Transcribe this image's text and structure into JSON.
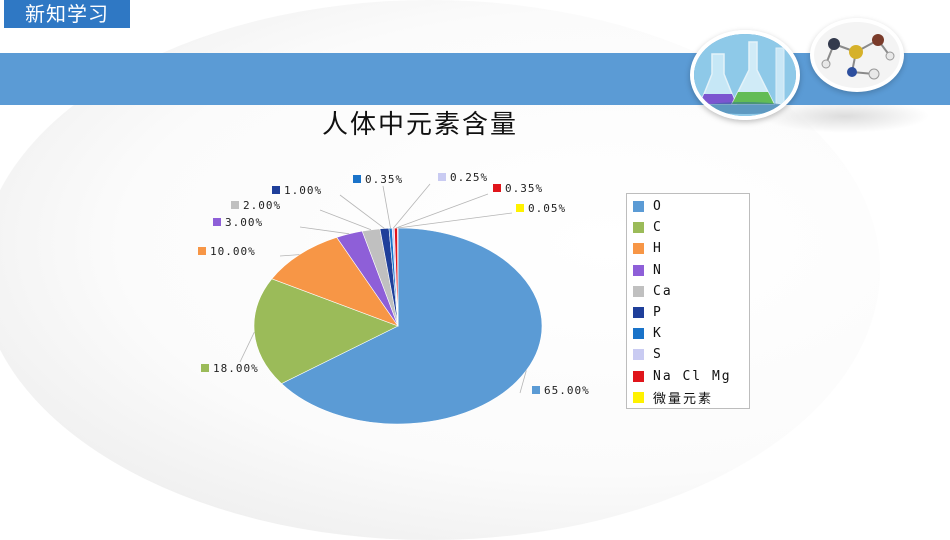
{
  "header": {
    "section_tag": "新知学习"
  },
  "chart_data": {
    "type": "pie",
    "title": "人体中元素含量",
    "labels": [
      "O",
      "C",
      "H",
      "N",
      "Ca",
      "P",
      "K",
      "S",
      "Na Cl Mg",
      "微量元素"
    ],
    "values": [
      65.0,
      18.0,
      10.0,
      3.0,
      2.0,
      1.0,
      0.35,
      0.25,
      0.35,
      0.05
    ],
    "value_labels": [
      "65.00%",
      "18.00%",
      "10.00%",
      "3.00%",
      "2.00%",
      "1.00%",
      "0.35%",
      "0.25%",
      "0.35%",
      "0.05%"
    ],
    "colors": [
      "#5b9bd5",
      "#9bbb59",
      "#f79646",
      "#8e5fd8",
      "#c0c0c0",
      "#1f3f9a",
      "#1a73c9",
      "#c9cbf2",
      "#e0151b",
      "#fff200"
    ],
    "legend_position": "right",
    "data_labels": "outside with leader lines"
  },
  "legend": {
    "items": [
      "O",
      "C",
      "H",
      "N",
      "Ca",
      "P",
      "K",
      "S",
      "Na Cl Mg",
      "微量元素"
    ]
  }
}
